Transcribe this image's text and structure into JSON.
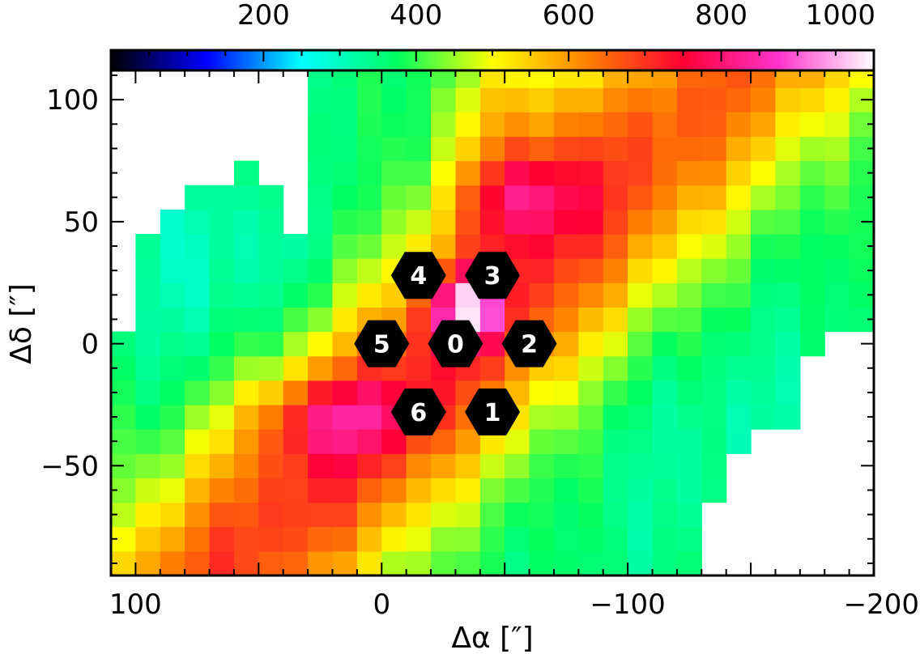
{
  "chart_data": {
    "type": "heatmap",
    "title": "",
    "xlabel": "Δα [″]",
    "ylabel": "Δδ [″]",
    "x_range": [
      110,
      -200
    ],
    "y_range": [
      -95,
      112
    ],
    "x_ticks": [
      {
        "value": 100,
        "label": "100"
      },
      {
        "value": 0,
        "label": "0"
      },
      {
        "value": -100,
        "label": "−100"
      },
      {
        "value": -200,
        "label": "−200"
      }
    ],
    "y_ticks": [
      {
        "value": 100,
        "label": "100"
      },
      {
        "value": 50,
        "label": "50"
      },
      {
        "value": 0,
        "label": "0"
      },
      {
        "value": -50,
        "label": "−50"
      }
    ],
    "colorbar": {
      "range": [
        0,
        1000
      ],
      "ticks": [
        {
          "value": 200,
          "label": "200"
        },
        {
          "value": 400,
          "label": "400"
        },
        {
          "value": 600,
          "label": "600"
        },
        {
          "value": 800,
          "label": "800"
        },
        {
          "value": 1000,
          "label": "1000"
        }
      ],
      "colormap": [
        "#000000",
        "#0000ff",
        "#00ffff",
        "#00ff60",
        "#ffff00",
        "#ff8000",
        "#ff0033",
        "#ff33cc",
        "#ffffff"
      ]
    },
    "grid": false,
    "pixel_size_arcsec": 10,
    "value_field": "smooth ridge along the NE-SW diagonal, peak ~950 at (-10,15) and ~900 at (-50,60), ~880 at (20,-30); falls to ~350 at the outer corners",
    "markers": [
      {
        "label": "0",
        "x": -30,
        "y": 0
      },
      {
        "label": "1",
        "x": -45,
        "y": -28
      },
      {
        "label": "2",
        "x": -60,
        "y": 0
      },
      {
        "label": "3",
        "x": -45,
        "y": 28
      },
      {
        "label": "4",
        "x": -15,
        "y": 28
      },
      {
        "label": "5",
        "x": 0,
        "y": 0
      },
      {
        "label": "6",
        "x": -15,
        "y": -28
      }
    ]
  }
}
